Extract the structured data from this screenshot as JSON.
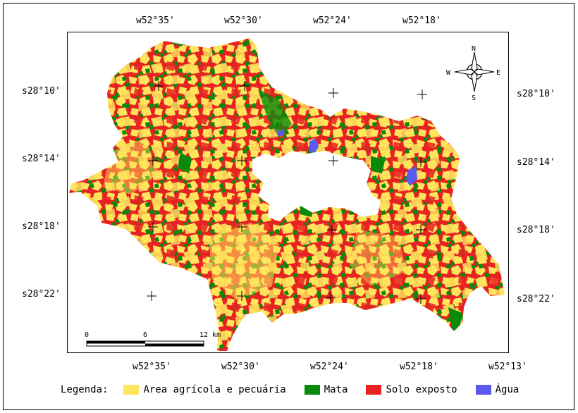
{
  "axes": {
    "top_lon": [
      "w52°35'",
      "w52°30'",
      "w52°24'",
      "w52°18'"
    ],
    "bottom_lon": [
      "w52°35'",
      "w52°30'",
      "w52°24'",
      "w52°18'",
      "w52°13'"
    ],
    "left_lat": [
      "s28°10'",
      "s28°14'",
      "s28°18'",
      "s28°22'"
    ],
    "right_lat": [
      "s28°10'",
      "s28°14'",
      "s28°18'",
      "s28°22'"
    ]
  },
  "compass": {
    "n": "N",
    "s": "S",
    "e": "E",
    "w": "W"
  },
  "scalebar": {
    "labels": [
      "0",
      "6",
      "12 km"
    ]
  },
  "legend": {
    "title": "Legenda:",
    "items": [
      {
        "label": "Area agrícola e pecuária",
        "color": "#FFE45C"
      },
      {
        "label": "Mata",
        "color": "#0A8A0A"
      },
      {
        "label": "Solo exposto",
        "color": "#E62222"
      },
      {
        "label": "Água",
        "color": "#5A5AF0"
      }
    ]
  }
}
